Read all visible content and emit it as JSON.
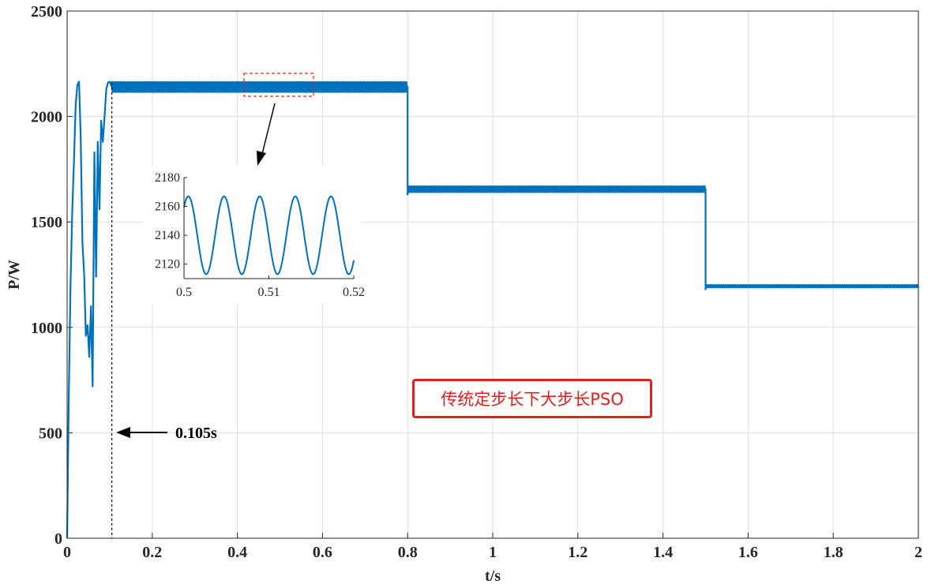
{
  "chart_data": [
    {
      "type": "line",
      "xlabel": "t/s",
      "ylabel": "P/W",
      "xlim": [
        0,
        2
      ],
      "ylim": [
        0,
        2500
      ],
      "x_ticks": [
        "0",
        "0.2",
        "0.4",
        "0.6",
        "0.8",
        "1",
        "1.2",
        "1.4",
        "1.6",
        "1.8",
        "2"
      ],
      "y_ticks": [
        "0",
        "500",
        "1000",
        "1500",
        "2000",
        "2500"
      ],
      "grid": true,
      "series": [
        {
          "name": "传统定步长下大步长PSO",
          "color": "#0072bd",
          "x": [
            0,
            0.004,
            0.008,
            0.012,
            0.016,
            0.02,
            0.024,
            0.028,
            0.032,
            0.036,
            0.04,
            0.044,
            0.048,
            0.052,
            0.056,
            0.06,
            0.064,
            0.068,
            0.072,
            0.076,
            0.08,
            0.084,
            0.088,
            0.092,
            0.096,
            0.1,
            0.105,
            0.2,
            0.4,
            0.6,
            0.799,
            0.8,
            1.0,
            1.2,
            1.499,
            1.5,
            1.7,
            2.0
          ],
          "values": [
            0,
            700,
            1200,
            1550,
            1780,
            2050,
            2150,
            2165,
            1900,
            1400,
            1250,
            960,
            1010,
            860,
            1100,
            720,
            1830,
            1240,
            1880,
            1560,
            1980,
            1880,
            2000,
            2130,
            2160,
            2165,
            2140,
            2140,
            2140,
            2140,
            2140,
            1655,
            1655,
            1655,
            1655,
            1195,
            1195,
            1195
          ]
        }
      ],
      "annotations": [
        {
          "label": "0.105s",
          "x": 0.105
        }
      ],
      "legend": "center-right"
    },
    {
      "type": "line",
      "xlabel": "",
      "ylabel": "",
      "xlim": [
        0.5,
        0.52
      ],
      "ylim": [
        2110,
        2180
      ],
      "x_ticks": [
        "0.5",
        "0.51",
        "0.52"
      ],
      "y_ticks": [
        "2120",
        "2140",
        "2160",
        "2180"
      ],
      "grid": false,
      "series": [
        {
          "color": "#0072bd",
          "center": 2140,
          "amplitude": 27,
          "period": 0.0042
        }
      ]
    }
  ],
  "legend_label": "传统定步长下大步长PSO"
}
